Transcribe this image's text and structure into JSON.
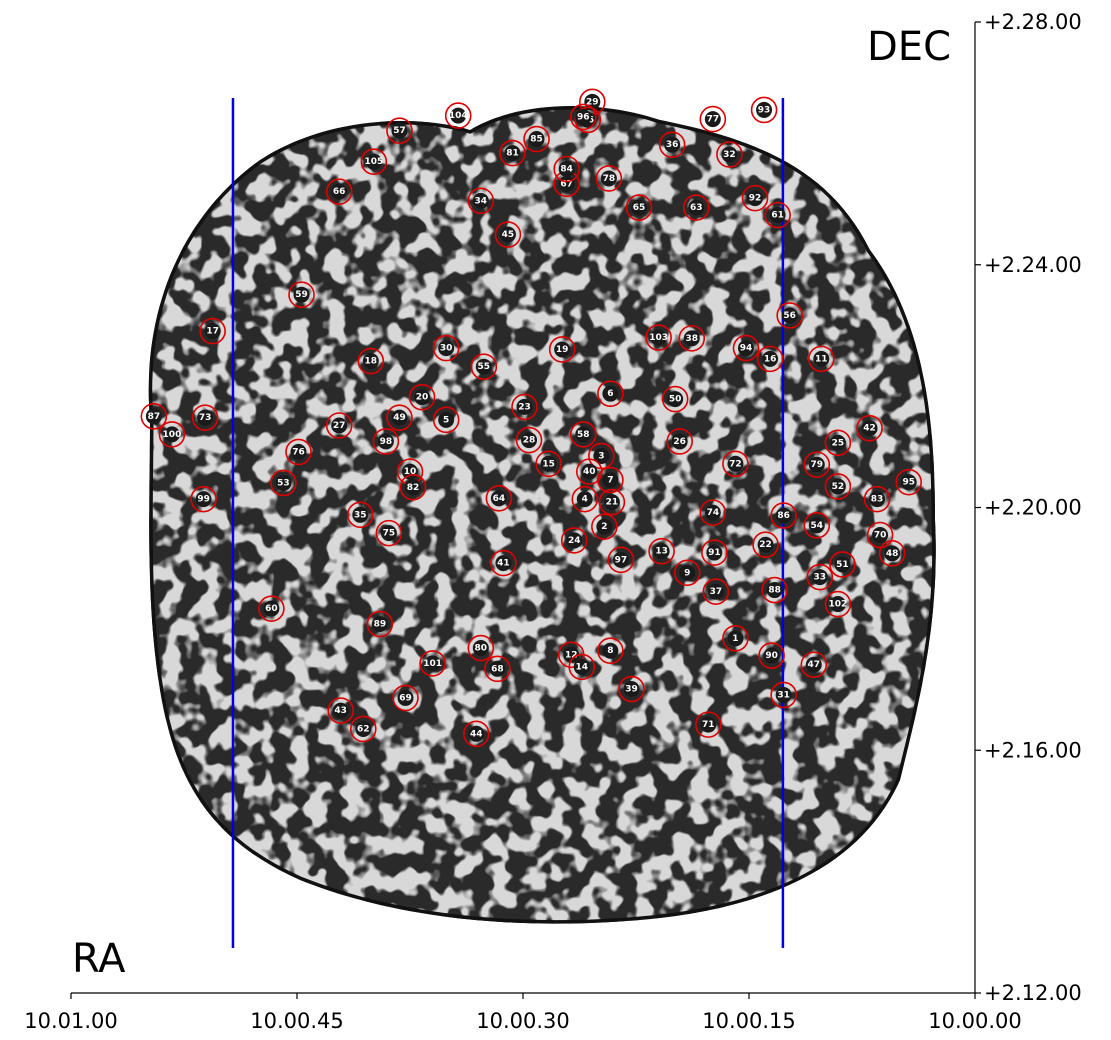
{
  "labels": {
    "ra": "RA",
    "dec": "DEC"
  },
  "chart_data": {
    "type": "scatter",
    "title": "",
    "xlabel": "RA",
    "ylabel": "DEC",
    "x_ticks": [
      "10.01.00",
      "10.00.45",
      "10.00.30",
      "10.00.15",
      "10.00.00"
    ],
    "y_ticks": [
      "+2.28.00",
      "+2.24.00",
      "+2.20.00",
      "+2.16.00",
      "+2.12.00"
    ],
    "xlim_seconds": [
      60,
      0
    ],
    "ylim_arcmin": [
      132,
      168
    ],
    "vertical_lines_ra_seconds": [
      49.25,
      12.75
    ],
    "colors": {
      "circle": "#e00000",
      "vertical_lines": "#0000e0"
    },
    "sources": [
      {
        "id": "1",
        "ra": 15.9,
        "dec": 145.15
      },
      {
        "id": "2",
        "ra": 24.6,
        "dec": 149.29
      },
      {
        "id": "3",
        "ra": 24.8,
        "dec": 151.91
      },
      {
        "id": "4",
        "ra": 25.9,
        "dec": 150.31
      },
      {
        "id": "5",
        "ra": 35.1,
        "dec": 153.25
      },
      {
        "id": "6",
        "ra": 24.2,
        "dec": 154.22
      },
      {
        "id": "7",
        "ra": 24.2,
        "dec": 151.02
      },
      {
        "id": "8",
        "ra": 24.2,
        "dec": 144.69
      },
      {
        "id": "9",
        "ra": 19.1,
        "dec": 147.58
      },
      {
        "id": "10",
        "ra": 37.5,
        "dec": 151.33
      },
      {
        "id": "11",
        "ra": 10.2,
        "dec": 155.51
      },
      {
        "id": "12",
        "ra": 26.8,
        "dec": 144.54
      },
      {
        "id": "13",
        "ra": 20.8,
        "dec": 148.38
      },
      {
        "id": "14",
        "ra": 26.1,
        "dec": 144.09
      },
      {
        "id": "15",
        "ra": 28.3,
        "dec": 151.62
      },
      {
        "id": "16",
        "ra": 13.6,
        "dec": 155.51
      },
      {
        "id": "17",
        "ra": 50.6,
        "dec": 156.54
      },
      {
        "id": "18",
        "ra": 40.1,
        "dec": 155.43
      },
      {
        "id": "19",
        "ra": 27.4,
        "dec": 155.86
      },
      {
        "id": "20",
        "ra": 36.7,
        "dec": 154.09
      },
      {
        "id": "21",
        "ra": 24.1,
        "dec": 150.2
      },
      {
        "id": "22",
        "ra": 13.9,
        "dec": 148.62
      },
      {
        "id": "23",
        "ra": 29.9,
        "dec": 153.73
      },
      {
        "id": "24",
        "ra": 26.6,
        "dec": 148.78
      },
      {
        "id": "25",
        "ra": 9.1,
        "dec": 152.4
      },
      {
        "id": "26",
        "ra": 19.6,
        "dec": 152.45
      },
      {
        "id": "27",
        "ra": 42.2,
        "dec": 153.04
      },
      {
        "id": "28",
        "ra": 29.6,
        "dec": 152.5
      },
      {
        "id": "29",
        "ra": 25.4,
        "dec": 165.04
      },
      {
        "id": "30",
        "ra": 35.1,
        "dec": 155.91
      },
      {
        "id": "31",
        "ra": 12.7,
        "dec": 143.05
      },
      {
        "id": "32",
        "ra": 16.3,
        "dec": 163.09
      },
      {
        "id": "33",
        "ra": 10.3,
        "dec": 147.42
      },
      {
        "id": "34",
        "ra": 32.8,
        "dec": 161.37
      },
      {
        "id": "35",
        "ra": 40.8,
        "dec": 149.73
      },
      {
        "id": "36",
        "ra": 20.1,
        "dec": 163.45
      },
      {
        "id": "37",
        "ra": 17.2,
        "dec": 146.88
      },
      {
        "id": "38",
        "ra": 18.8,
        "dec": 156.27
      },
      {
        "id": "39",
        "ra": 22.8,
        "dec": 143.27
      },
      {
        "id": "40",
        "ra": 25.6,
        "dec": 151.33
      },
      {
        "id": "41",
        "ra": 31.3,
        "dec": 147.94
      },
      {
        "id": "42",
        "ra": 7.0,
        "dec": 152.94
      },
      {
        "id": "43",
        "ra": 42.1,
        "dec": 142.47
      },
      {
        "id": "44",
        "ra": 33.1,
        "dec": 141.61
      },
      {
        "id": "45",
        "ra": 31.0,
        "dec": 160.12
      },
      {
        "id": "46",
        "ra": 25.7,
        "dec": 164.37
      },
      {
        "id": "47",
        "ra": 10.7,
        "dec": 144.17
      },
      {
        "id": "48",
        "ra": 5.5,
        "dec": 148.3
      },
      {
        "id": "49",
        "ra": 38.2,
        "dec": 153.33
      },
      {
        "id": "50",
        "ra": 19.9,
        "dec": 154.02
      },
      {
        "id": "51",
        "ra": 8.8,
        "dec": 147.89
      },
      {
        "id": "52",
        "ra": 9.1,
        "dec": 150.78
      },
      {
        "id": "53",
        "ra": 45.9,
        "dec": 150.91
      },
      {
        "id": "54",
        "ra": 10.5,
        "dec": 149.34
      },
      {
        "id": "55",
        "ra": 32.6,
        "dec": 155.22
      },
      {
        "id": "56",
        "ra": 12.3,
        "dec": 157.12
      },
      {
        "id": "57",
        "ra": 38.2,
        "dec": 163.97
      },
      {
        "id": "58",
        "ra": 26.0,
        "dec": 152.71
      },
      {
        "id": "59",
        "ra": 44.7,
        "dec": 157.89
      },
      {
        "id": "60",
        "ra": 46.7,
        "dec": 146.25
      },
      {
        "id": "61",
        "ra": 13.1,
        "dec": 160.84
      },
      {
        "id": "62",
        "ra": 40.6,
        "dec": 141.79
      },
      {
        "id": "63",
        "ra": 18.5,
        "dec": 161.12
      },
      {
        "id": "64",
        "ra": 31.6,
        "dec": 150.34
      },
      {
        "id": "65",
        "ra": 22.3,
        "dec": 161.12
      },
      {
        "id": "66",
        "ra": 42.2,
        "dec": 161.71
      },
      {
        "id": "67",
        "ra": 27.1,
        "dec": 162.0
      },
      {
        "id": "68",
        "ra": 31.7,
        "dec": 144.02
      },
      {
        "id": "69",
        "ra": 37.8,
        "dec": 142.94
      },
      {
        "id": "70",
        "ra": 6.3,
        "dec": 148.98
      },
      {
        "id": "71",
        "ra": 17.7,
        "dec": 141.95
      },
      {
        "id": "72",
        "ra": 15.9,
        "dec": 151.62
      },
      {
        "id": "73",
        "ra": 51.1,
        "dec": 153.33
      },
      {
        "id": "74",
        "ra": 17.4,
        "dec": 149.81
      },
      {
        "id": "75",
        "ra": 38.9,
        "dec": 149.05
      },
      {
        "id": "76",
        "ra": 44.9,
        "dec": 152.06
      },
      {
        "id": "77",
        "ra": 17.4,
        "dec": 164.4
      },
      {
        "id": "78",
        "ra": 24.3,
        "dec": 162.2
      },
      {
        "id": "79",
        "ra": 10.5,
        "dec": 151.59
      },
      {
        "id": "80",
        "ra": 32.8,
        "dec": 144.79
      },
      {
        "id": "81",
        "ra": 30.7,
        "dec": 163.14
      },
      {
        "id": "82",
        "ra": 37.3,
        "dec": 150.75
      },
      {
        "id": "83",
        "ra": 6.5,
        "dec": 150.31
      },
      {
        "id": "84",
        "ra": 27.1,
        "dec": 162.55
      },
      {
        "id": "85",
        "ra": 29.1,
        "dec": 163.66
      },
      {
        "id": "86",
        "ra": 12.7,
        "dec": 149.7
      },
      {
        "id": "87",
        "ra": 54.5,
        "dec": 153.38
      },
      {
        "id": "88",
        "ra": 13.3,
        "dec": 146.94
      },
      {
        "id": "89",
        "ra": 39.5,
        "dec": 145.68
      },
      {
        "id": "90",
        "ra": 13.5,
        "dec": 144.51
      },
      {
        "id": "91",
        "ra": 17.3,
        "dec": 148.33
      },
      {
        "id": "92",
        "ra": 14.6,
        "dec": 161.47
      },
      {
        "id": "93",
        "ra": 14.0,
        "dec": 164.74
      },
      {
        "id": "94",
        "ra": 15.2,
        "dec": 155.91
      },
      {
        "id": "95",
        "ra": 4.4,
        "dec": 150.94
      },
      {
        "id": "96",
        "ra": 26.0,
        "dec": 164.48
      },
      {
        "id": "97",
        "ra": 23.5,
        "dec": 148.06
      },
      {
        "id": "98",
        "ra": 39.1,
        "dec": 152.45
      },
      {
        "id": "99",
        "ra": 51.2,
        "dec": 150.31
      },
      {
        "id": "100",
        "ra": 53.3,
        "dec": 152.71
      },
      {
        "id": "101",
        "ra": 36.0,
        "dec": 144.22
      },
      {
        "id": "102",
        "ra": 9.1,
        "dec": 146.42
      },
      {
        "id": "103",
        "ra": 21.0,
        "dec": 156.3
      },
      {
        "id": "104",
        "ra": 34.3,
        "dec": 164.53
      },
      {
        "id": "105",
        "ra": 39.9,
        "dec": 162.82
      }
    ]
  }
}
